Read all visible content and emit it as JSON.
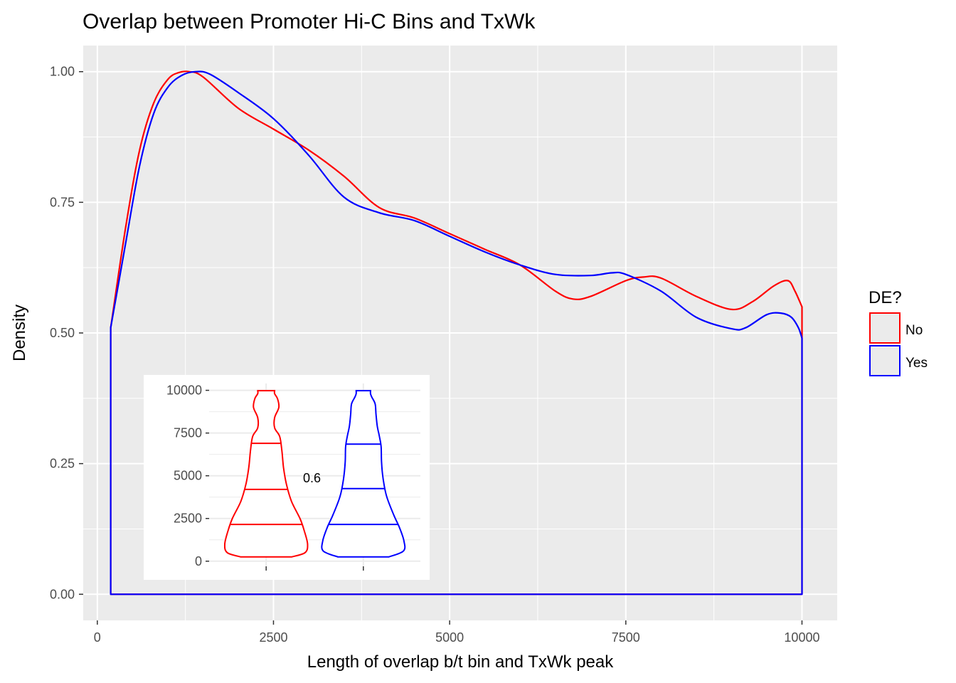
{
  "chart_data": [
    {
      "type": "line",
      "title": "Overlap between Promoter Hi-C Bins and TxWk",
      "xlabel": "Length of overlap b/t bin and TxWk peak",
      "ylabel": "Density",
      "xlim": [
        -200,
        10500
      ],
      "ylim": [
        -0.05,
        1.05
      ],
      "x_ticks": [
        0,
        2500,
        5000,
        7500,
        10000
      ],
      "x_tick_labels": [
        "0",
        "2500",
        "5000",
        "7500",
        "10000"
      ],
      "y_ticks": [
        0,
        0.25,
        0.5,
        0.75,
        1.0
      ],
      "y_tick_labels": [
        "0.00",
        "0.25",
        "0.50",
        "0.75",
        "1.00"
      ],
      "grid": true,
      "legend": {
        "title": "DE?",
        "position": "right",
        "entries": [
          {
            "label": "No",
            "color": "#ff0000"
          },
          {
            "label": "Yes",
            "color": "#0000ff"
          }
        ]
      },
      "series": [
        {
          "name": "No",
          "color": "#ff0000",
          "x": [
            190,
            400,
            600,
            800,
            1000,
            1150,
            1300,
            1500,
            2000,
            2500,
            3000,
            3500,
            4000,
            4500,
            5000,
            5500,
            6000,
            6500,
            6750,
            7000,
            7500,
            7750,
            8000,
            8500,
            9000,
            9300,
            9600,
            9800,
            9900,
            10000
          ],
          "y": [
            0.51,
            0.7,
            0.85,
            0.94,
            0.985,
            0.998,
            1.0,
            0.99,
            0.93,
            0.89,
            0.85,
            0.8,
            0.74,
            0.72,
            0.69,
            0.66,
            0.63,
            0.58,
            0.565,
            0.57,
            0.6,
            0.607,
            0.605,
            0.57,
            0.545,
            0.56,
            0.59,
            0.6,
            0.58,
            0.55
          ]
        },
        {
          "name": "Yes",
          "color": "#0000ff",
          "x": [
            190,
            400,
            600,
            800,
            1000,
            1200,
            1400,
            1600,
            2000,
            2500,
            3000,
            3500,
            4000,
            4500,
            5000,
            5500,
            6000,
            6500,
            7000,
            7300,
            7500,
            8000,
            8500,
            9000,
            9200,
            9500,
            9700,
            9850,
            9950,
            10000
          ],
          "y": [
            0.51,
            0.67,
            0.82,
            0.92,
            0.97,
            0.993,
            1.0,
            0.995,
            0.96,
            0.91,
            0.84,
            0.76,
            0.73,
            0.715,
            0.685,
            0.655,
            0.63,
            0.612,
            0.61,
            0.615,
            0.612,
            0.58,
            0.53,
            0.508,
            0.51,
            0.535,
            0.538,
            0.53,
            0.51,
            0.49
          ]
        }
      ]
    },
    {
      "type": "violin",
      "ylim": [
        -300,
        10400
      ],
      "y_ticks": [
        0,
        2500,
        5000,
        7500,
        10000
      ],
      "y_tick_labels": [
        "0",
        "2500",
        "5000",
        "7500",
        "10000"
      ],
      "grid": true,
      "annotation": "0.6",
      "series": [
        {
          "name": "No",
          "color": "#ff0000",
          "quantiles": [
            2150,
            4200,
            6900
          ],
          "profile": [
            [
              250,
              0.6
            ],
            [
              500,
              0.92
            ],
            [
              1000,
              0.98
            ],
            [
              1800,
              0.9
            ],
            [
              2500,
              0.8
            ],
            [
              3500,
              0.6
            ],
            [
              4500,
              0.48
            ],
            [
              5500,
              0.41
            ],
            [
              6500,
              0.37
            ],
            [
              7300,
              0.32
            ],
            [
              7800,
              0.2
            ],
            [
              8400,
              0.2
            ],
            [
              9000,
              0.3
            ],
            [
              9500,
              0.27
            ],
            [
              9800,
              0.2
            ],
            [
              9980,
              0.2
            ]
          ]
        },
        {
          "name": "Yes",
          "color": "#0000ff",
          "quantiles": [
            2150,
            4250,
            6850
          ],
          "profile": [
            [
              250,
              0.6
            ],
            [
              600,
              0.95
            ],
            [
              1200,
              0.96
            ],
            [
              2000,
              0.85
            ],
            [
              2700,
              0.72
            ],
            [
              3800,
              0.55
            ],
            [
              4800,
              0.47
            ],
            [
              5800,
              0.43
            ],
            [
              6700,
              0.42
            ],
            [
              7300,
              0.38
            ],
            [
              7900,
              0.33
            ],
            [
              8600,
              0.3
            ],
            [
              9200,
              0.28
            ],
            [
              9600,
              0.2
            ],
            [
              9800,
              0.17
            ],
            [
              9980,
              0.17
            ]
          ]
        }
      ]
    }
  ]
}
